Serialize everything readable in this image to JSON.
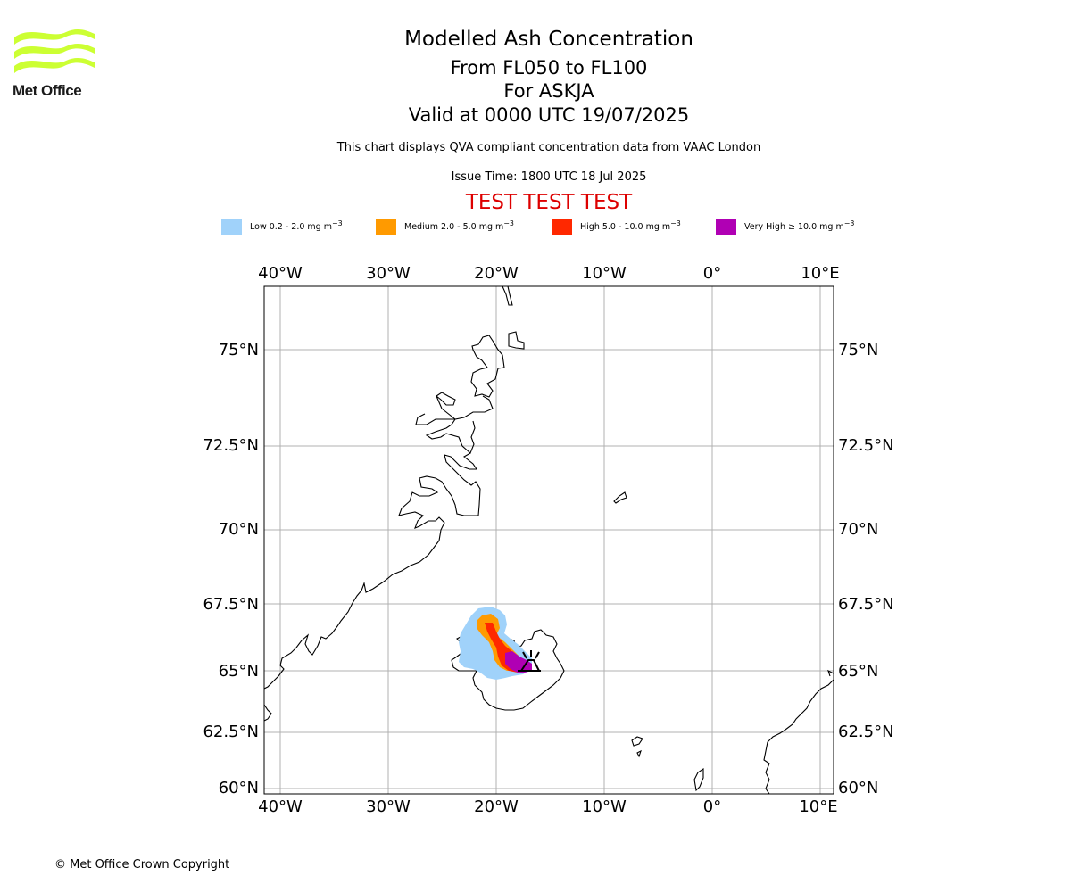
{
  "logo": {
    "name": "Met Office",
    "colors": {
      "waves": "#ccff33",
      "text": "#1a1a1a"
    }
  },
  "header": {
    "title": "Modelled Ash Concentration",
    "subtitle_levels": "From FL050 to FL100",
    "subtitle_volcano": "For ASKJA",
    "subtitle_valid": "Valid at 0000 UTC 19/07/2025",
    "description": "This chart displays QVA compliant concentration data from VAAC London",
    "issue_time": "Issue Time: 1800 UTC 18 Jul 2025",
    "test_banner": "TEST TEST TEST",
    "test_color": "#dd0000"
  },
  "legend": [
    {
      "label": "Low 0.2 - 2.0 mg m",
      "color": "#a0d2fa"
    },
    {
      "label": "Medium 2.0 - 5.0 mg m",
      "color": "#ff9a00"
    },
    {
      "label": "High 5.0 - 10.0 mg m",
      "color": "#ff2800"
    },
    {
      "label": "Very High ≥ 10.0 mg m",
      "color": "#b000b4"
    }
  ],
  "legend_unit_exponent": "−3",
  "map": {
    "lon_range": [
      -41.5,
      11.3
    ],
    "lat_range": [
      59.85,
      77.0
    ],
    "lon_ticks": [
      "40°W",
      "30°W",
      "20°W",
      "10°W",
      "0°",
      "10°E"
    ],
    "lat_ticks": [
      "75°N",
      "72.5°N",
      "70°N",
      "67.5°N",
      "65°N",
      "62.5°N",
      "60°N"
    ],
    "gridlines": true,
    "volcano": {
      "name": "ASKJA",
      "lon": -16.75,
      "lat": 65.03,
      "symbol": "volcano-icon"
    }
  },
  "footer": {
    "copyright": "© Met Office Crown Copyright"
  }
}
